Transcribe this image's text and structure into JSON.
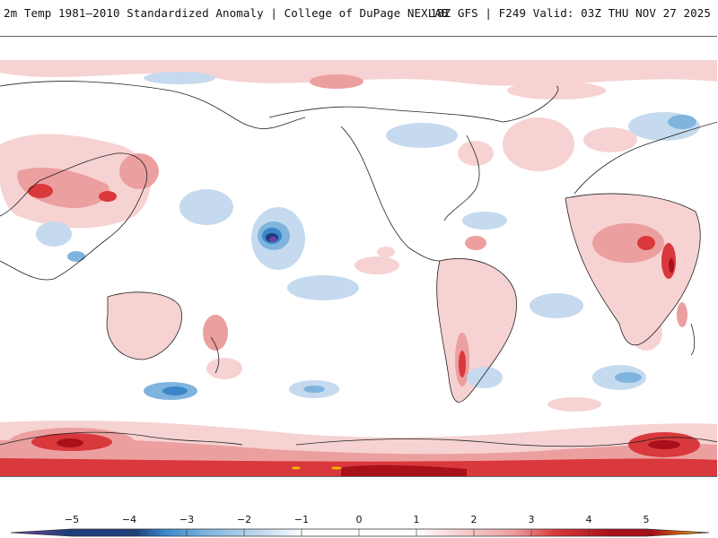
{
  "header": {
    "title": "2m Temp 1981–2010 Standardized Anomaly | College of DuPage NEXLAB",
    "run_info": "18Z GFS | F249 Valid: 03Z THU NOV 27 2025"
  },
  "colorbar": {
    "labels": [
      "−5",
      "−4",
      "−3",
      "−2",
      "−1",
      "0",
      "1",
      "2",
      "3",
      "4",
      "5"
    ],
    "colors": {
      "purple": "#7b3fa8",
      "navy": "#1f3f7a",
      "blue": "#3a86c8",
      "mid_blue": "#7fb4de",
      "light_blue": "#c5daee",
      "white": "#ffffff",
      "light_pink": "#f6d2d2",
      "pink": "#ec9f9f",
      "red": "#d9383c",
      "dark_red": "#a8101a",
      "gold": "#f5b800"
    }
  }
}
